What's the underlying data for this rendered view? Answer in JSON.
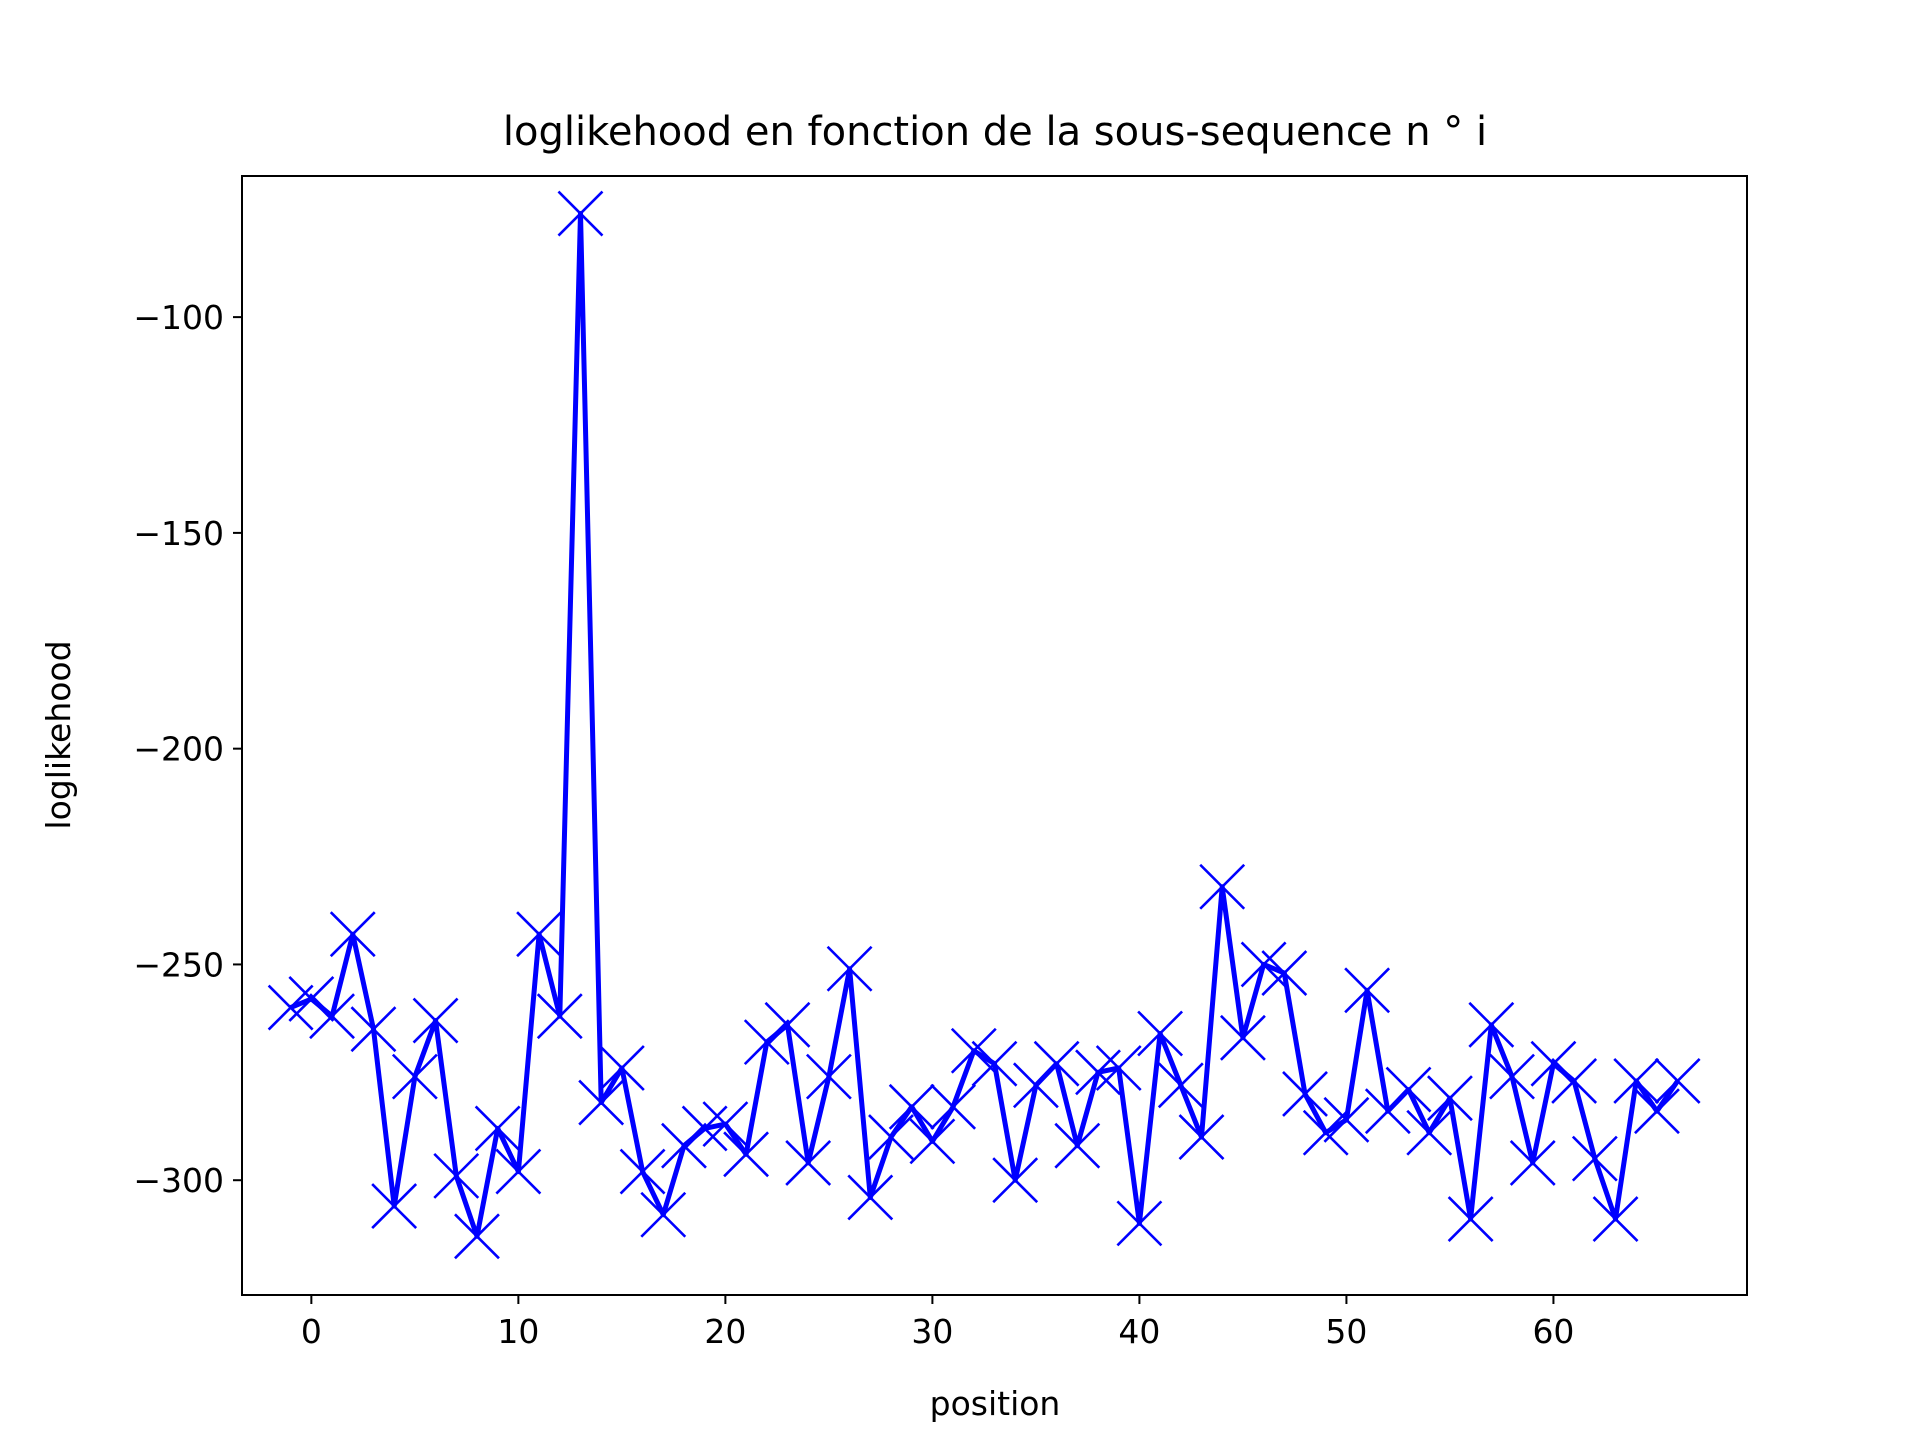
{
  "chart_data": {
    "type": "line",
    "title": "loglikehood en fonction de la sous-sequence n ° i",
    "xlabel": "position",
    "ylabel": "loglikehood",
    "xlim": [
      -3.35,
      69.35
    ],
    "ylim": [
      -326.6,
      -67.3
    ],
    "xticks": [
      0,
      10,
      20,
      30,
      40,
      50,
      60
    ],
    "yticks": [
      -100,
      -150,
      -200,
      -250,
      -300
    ],
    "grid": false,
    "line_color": "#0000ff",
    "marker": "x",
    "series": [
      {
        "x": [
          -1,
          0,
          1,
          2,
          3,
          4,
          5,
          6,
          7,
          8,
          9,
          10,
          11,
          12,
          13,
          14,
          15,
          16,
          17,
          18,
          19,
          20,
          21,
          22,
          23,
          24,
          25,
          26,
          27,
          28,
          29,
          30,
          31,
          32,
          33,
          34,
          35,
          36,
          37,
          38,
          39,
          40,
          41,
          42,
          43,
          44,
          45,
          46,
          47,
          48,
          49,
          50,
          51,
          52,
          53,
          54,
          55,
          56,
          57,
          58,
          59,
          60,
          61,
          62,
          63,
          64,
          65,
          66
        ],
        "values": [
          -260,
          -258,
          -262,
          -243,
          -265,
          -306,
          -276,
          -263,
          -299,
          -313,
          -288,
          -298,
          -243,
          -262,
          -76,
          -282,
          -274,
          -298,
          -308,
          -292,
          -288,
          -287,
          -294,
          -268,
          -264,
          -296,
          -276,
          -251,
          -304,
          -290,
          -283,
          -291,
          -283,
          -270,
          -273,
          -300,
          -278,
          -273,
          -292,
          -275,
          -274,
          -310,
          -266,
          -278,
          -290,
          -232,
          -267,
          -250,
          -252,
          -280,
          -289,
          -286,
          -256,
          -284,
          -279,
          -289,
          -281,
          -309,
          -264,
          -276,
          -296,
          -273,
          -277,
          -295,
          -309,
          -277,
          -284,
          -277
        ]
      }
    ]
  }
}
